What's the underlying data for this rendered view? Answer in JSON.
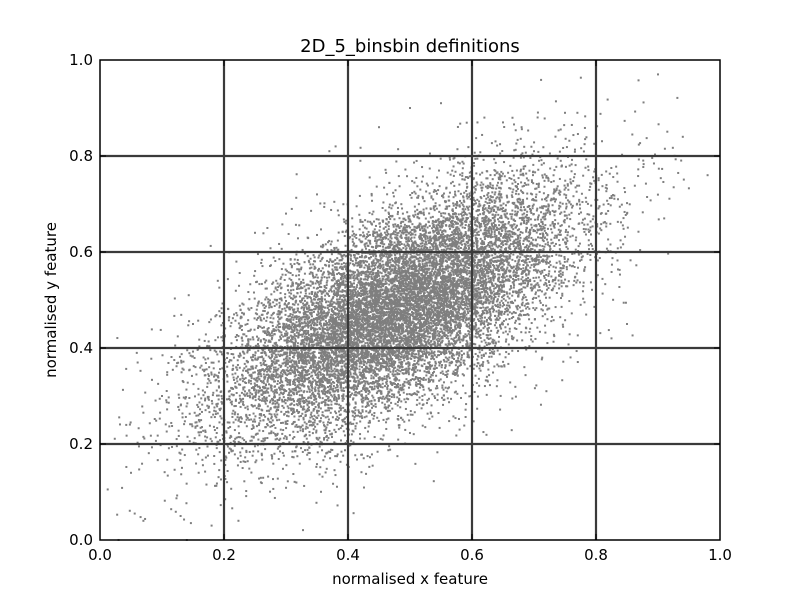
{
  "chart_data": {
    "type": "scatter",
    "title": "2D_5_binsbin definitions",
    "xlabel": "normalised x feature",
    "ylabel": "normalised y feature",
    "xlim": [
      0.0,
      1.0
    ],
    "ylim": [
      0.0,
      1.0
    ],
    "xticks": [
      "0.0",
      "0.2",
      "0.4",
      "0.6",
      "0.8",
      "1.0"
    ],
    "yticks": [
      "0.0",
      "0.2",
      "0.4",
      "0.6",
      "0.8",
      "1.0"
    ],
    "bin_edges_x": [
      0.2,
      0.4,
      0.6,
      0.8
    ],
    "bin_edges_y": [
      0.2,
      0.4,
      0.6,
      0.8
    ],
    "grid": true,
    "marker_color": "#7f7f7f",
    "gridline_color": "#3a3a3a",
    "distribution": {
      "kind": "bivariate-normal",
      "mean": [
        0.48,
        0.48
      ],
      "std": [
        0.14,
        0.13
      ],
      "correlation": 0.65,
      "n_points": 14000
    },
    "series": [
      {
        "points": [
          [
            0.05,
            0.14
          ],
          [
            0.07,
            0.04
          ],
          [
            0.1,
            0.3
          ],
          [
            0.13,
            0.05
          ],
          [
            0.14,
            0.0
          ],
          [
            0.15,
            0.45
          ],
          [
            0.18,
            0.03
          ],
          [
            0.19,
            0.54
          ],
          [
            0.2,
            0.61
          ],
          [
            0.22,
            0.58
          ],
          [
            0.25,
            0.64
          ],
          [
            0.27,
            0.65
          ],
          [
            0.3,
            0.68
          ],
          [
            0.32,
            0.2
          ],
          [
            0.35,
            0.72
          ],
          [
            0.37,
            0.81
          ],
          [
            0.38,
            0.82
          ],
          [
            0.42,
            0.79
          ],
          [
            0.45,
            0.86
          ],
          [
            0.5,
            0.9
          ],
          [
            0.55,
            0.91
          ],
          [
            0.6,
            0.89
          ],
          [
            0.62,
            0.88
          ],
          [
            0.65,
            0.87
          ],
          [
            0.68,
            0.86
          ],
          [
            0.7,
            0.81
          ],
          [
            0.72,
            0.31
          ],
          [
            0.75,
            0.89
          ],
          [
            0.77,
            0.89
          ],
          [
            0.8,
            0.95
          ],
          [
            0.82,
            0.7
          ],
          [
            0.85,
            0.45
          ],
          [
            0.88,
            0.6
          ],
          [
            0.9,
            0.97
          ],
          [
            0.91,
            0.67
          ],
          [
            0.94,
            0.84
          ],
          [
            0.98,
            0.76
          ],
          [
            0.52,
            0.3
          ],
          [
            0.58,
            0.23
          ],
          [
            0.6,
            0.35
          ],
          [
            0.75,
            0.62
          ],
          [
            0.85,
            0.68
          ]
        ]
      }
    ]
  }
}
